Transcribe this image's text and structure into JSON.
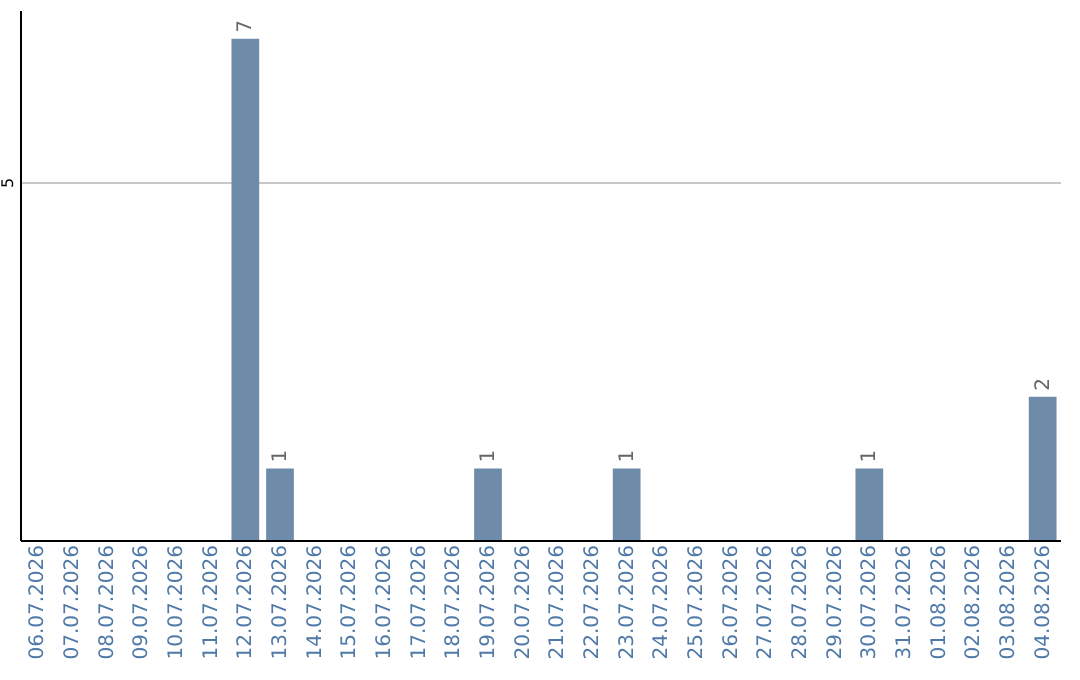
{
  "chart_data": {
    "type": "bar",
    "categories": [
      "06.07.2026",
      "07.07.2026",
      "08.07.2026",
      "09.07.2026",
      "10.07.2026",
      "11.07.2026",
      "12.07.2026",
      "13.07.2026",
      "14.07.2026",
      "15.07.2026",
      "16.07.2026",
      "17.07.2026",
      "18.07.2026",
      "19.07.2026",
      "20.07.2026",
      "21.07.2026",
      "22.07.2026",
      "23.07.2026",
      "24.07.2026",
      "25.07.2026",
      "26.07.2026",
      "27.07.2026",
      "28.07.2026",
      "29.07.2026",
      "30.07.2026",
      "31.07.2026",
      "01.08.2026",
      "02.08.2026",
      "03.08.2026",
      "04.08.2026"
    ],
    "values": [
      0,
      0,
      0,
      0,
      0,
      0,
      7,
      1,
      0,
      0,
      0,
      0,
      0,
      1,
      0,
      0,
      0,
      1,
      0,
      0,
      0,
      0,
      0,
      0,
      1,
      0,
      0,
      0,
      0,
      2
    ],
    "value_labels": [
      null,
      null,
      null,
      null,
      null,
      null,
      "7",
      "1",
      null,
      null,
      null,
      null,
      null,
      "1",
      null,
      null,
      null,
      "1",
      null,
      null,
      null,
      null,
      null,
      null,
      "1",
      null,
      null,
      null,
      null,
      "2"
    ],
    "color": "#6e8caa",
    "ylim": [
      0,
      7.4
    ],
    "yticks": [
      5
    ],
    "grid": "y"
  }
}
